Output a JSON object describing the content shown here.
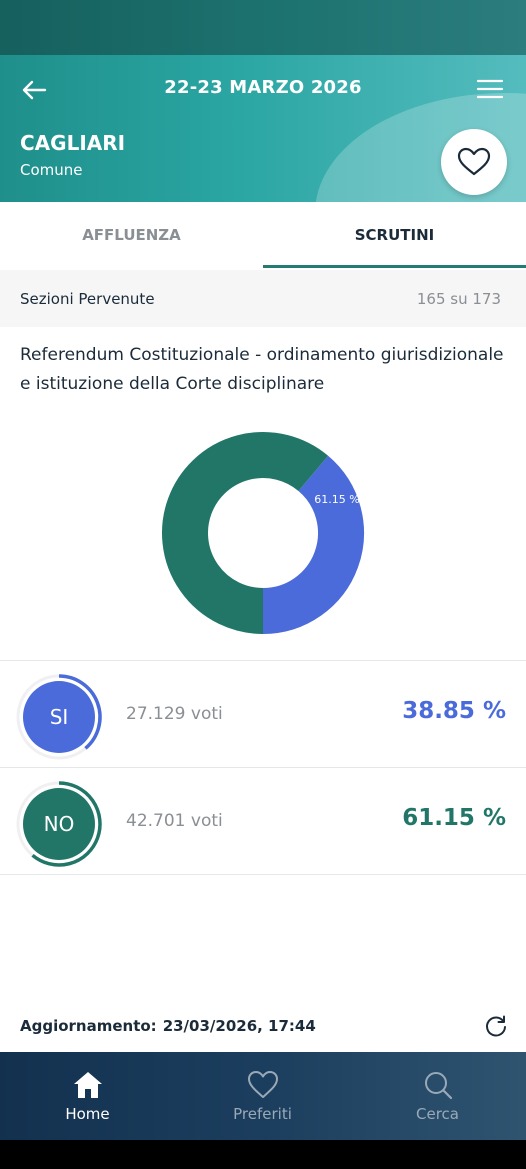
{
  "header": {
    "title": "22-23 MARZO 2026",
    "city": "CAGLIARI",
    "city_type": "Comune"
  },
  "tabs": [
    {
      "label": "AFFLUENZA",
      "active": false
    },
    {
      "label": "SCRUTINI",
      "active": true
    }
  ],
  "sections": {
    "label": "Sezioni Pervenute",
    "value": "165 su 173"
  },
  "referendum": {
    "title": "Referendum Costituzionale - ordinamento giurisdizionale e istituzione della Corte disciplinare"
  },
  "chart_data": {
    "type": "pie",
    "donut": true,
    "categories": [
      "SI",
      "NO"
    ],
    "values": [
      38.85,
      61.15
    ],
    "labels": [
      "38.85 %",
      "61.15 %"
    ],
    "colors": [
      "#4a6bd9",
      "#217668"
    ]
  },
  "results": [
    {
      "label": "SI",
      "votes": "27.129 voti",
      "percent": "38.85 %",
      "fraction": 0.3885,
      "color": "#4a6bd9"
    },
    {
      "label": "NO",
      "votes": "42.701 voti",
      "percent": "61.15 %",
      "fraction": 0.6115,
      "color": "#217668"
    }
  ],
  "update": {
    "label": "Aggiornamento:",
    "timestamp": "23/03/2026, 17:44"
  },
  "nav": [
    {
      "label": "Home",
      "icon": "home-icon",
      "active": true
    },
    {
      "label": "Preferiti",
      "icon": "heart-icon",
      "active": false
    },
    {
      "label": "Cerca",
      "icon": "search-icon",
      "active": false
    }
  ]
}
